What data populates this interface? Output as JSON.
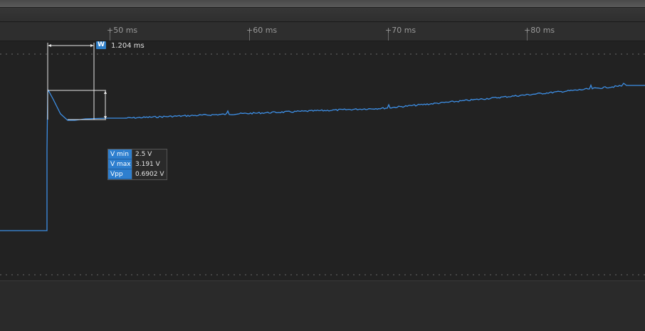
{
  "colors": {
    "signal": "#3d8fe6",
    "accent": "#2f7fc8",
    "background": "#222222"
  },
  "ruler": {
    "ticks": [
      {
        "label": "+50 ms"
      },
      {
        "label": "+60 ms"
      },
      {
        "label": "+70 ms"
      },
      {
        "label": "+80 ms"
      }
    ]
  },
  "width_marker": {
    "badge": "W",
    "value": "1.204 ms"
  },
  "measurements": [
    {
      "key": "V min",
      "value": "2.5 V"
    },
    {
      "key": "V max",
      "value": "3.191 V"
    },
    {
      "key": "Vpp",
      "value": "0.6902 V"
    }
  ]
}
